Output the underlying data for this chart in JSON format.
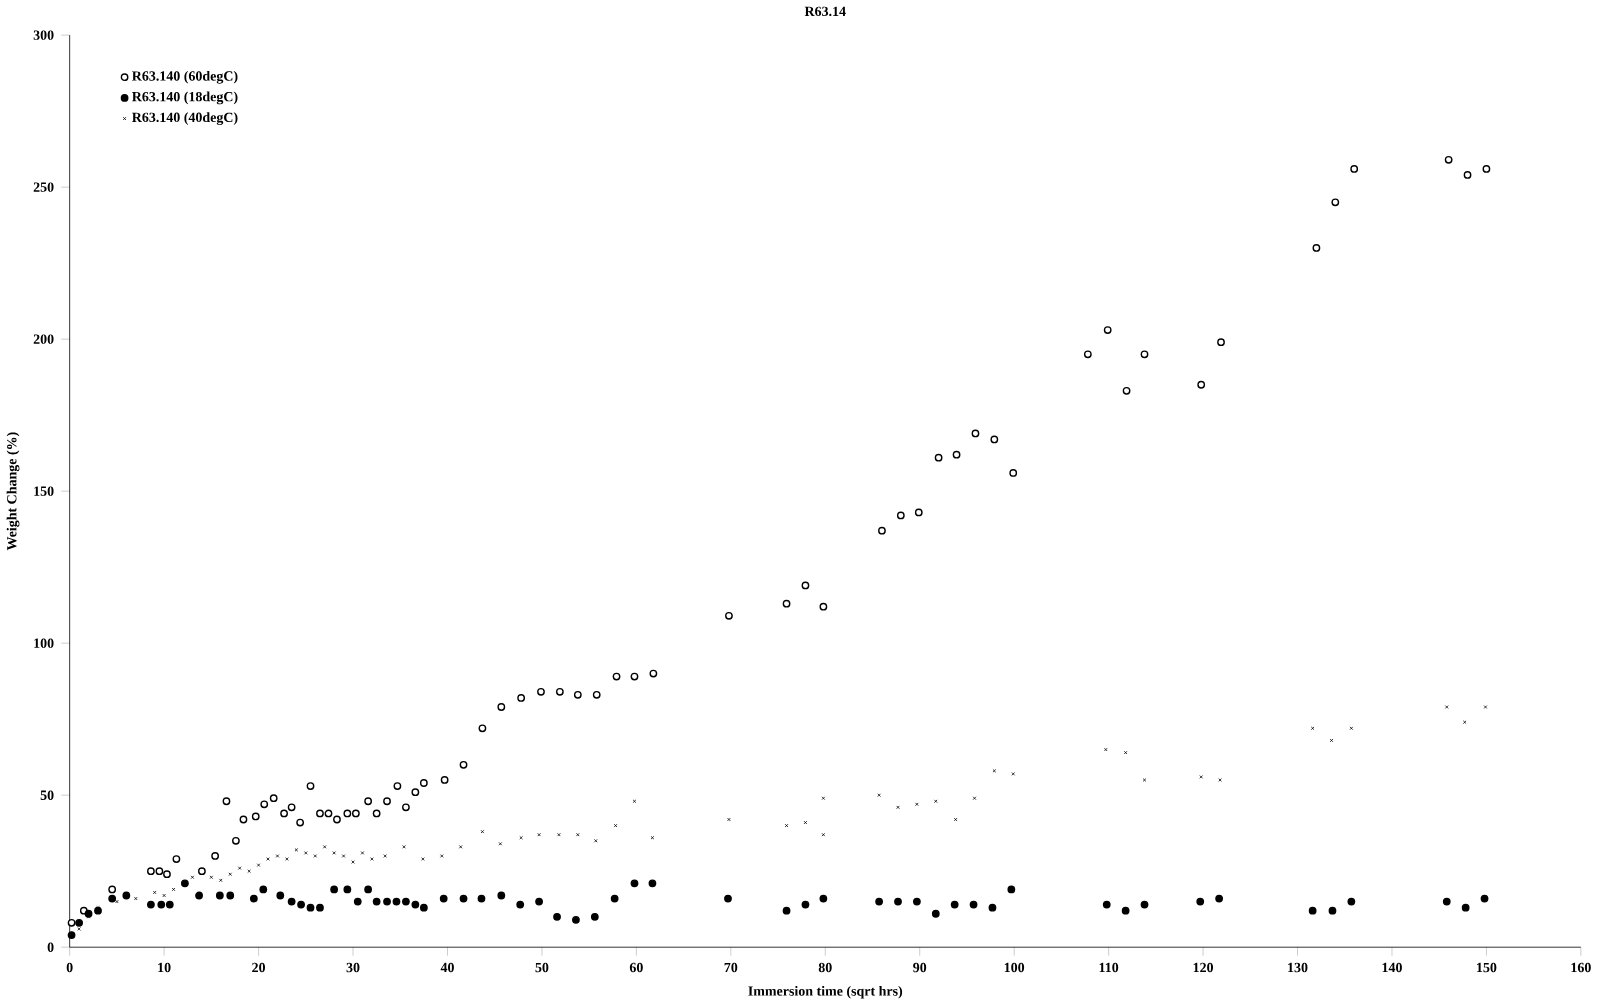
{
  "chart_data": {
    "type": "scatter",
    "title": "R63.14",
    "xlabel": "Immersion time (sqrt hrs)",
    "ylabel": "Weight Change (%)",
    "xlim": [
      0,
      160
    ],
    "xticks": [
      0,
      10,
      20,
      30,
      40,
      50,
      60,
      70,
      80,
      90,
      100,
      110,
      120,
      130,
      140,
      150,
      160
    ],
    "ylim": [
      0,
      300
    ],
    "yticks": [
      0,
      50,
      100,
      150,
      200,
      250,
      300
    ],
    "grid": false,
    "legend": "top left",
    "series": [
      {
        "name": "R63.140 (60degC)",
        "color": "#000000",
        "marker": "circle",
        "x": [
          0.2,
          1.5,
          4.5,
          8.6,
          9.5,
          10.3,
          11.3,
          14,
          15.4,
          16.6,
          17.6,
          18.4,
          19.7,
          20.6,
          21.6,
          22.7,
          23.5,
          24.4,
          25.5,
          26.5,
          27.4,
          28.3,
          29.4,
          30.3,
          31.6,
          32.5,
          33.6,
          34.7,
          35.6,
          36.6,
          37.5,
          39.7,
          41.7,
          43.7,
          45.7,
          47.8,
          49.9,
          51.9,
          53.8,
          55.8,
          57.9,
          59.8,
          61.8,
          69.8,
          75.9,
          77.9,
          79.8,
          86,
          88,
          89.9,
          92,
          93.9,
          95.9,
          97.9,
          99.9,
          107.8,
          109.9,
          111.9,
          113.8,
          119.8,
          121.9,
          132,
          134,
          136,
          146,
          148,
          150
        ],
        "values": [
          8,
          12,
          19,
          25,
          25,
          24,
          29,
          25,
          30,
          48,
          35,
          42,
          43,
          47,
          49,
          44,
          46,
          41,
          53,
          44,
          44,
          42,
          44,
          44,
          48,
          44,
          48,
          53,
          46,
          51,
          54,
          55,
          60,
          72,
          79,
          82,
          84,
          84,
          83,
          83,
          89,
          89,
          90,
          109,
          113,
          119,
          112,
          137,
          142,
          143,
          161,
          162,
          169,
          167,
          156,
          195,
          203,
          183,
          195,
          185,
          199,
          230,
          245,
          256,
          259,
          254,
          256
        ]
      },
      {
        "name": "R63.140 (18degC)",
        "color": "#000000",
        "marker": "circle",
        "x": [
          0.2,
          1,
          2,
          3,
          4.5,
          6,
          8.6,
          9.7,
          10.6,
          12.2,
          13.7,
          15.9,
          17,
          19.5,
          20.5,
          22.3,
          23.5,
          24.5,
          25.5,
          26.5,
          28,
          29.4,
          30.5,
          31.6,
          32.5,
          33.6,
          34.6,
          35.6,
          36.6,
          37.5,
          39.6,
          41.7,
          43.6,
          45.7,
          47.7,
          49.7,
          51.6,
          53.6,
          55.6,
          57.7,
          59.8,
          61.7,
          69.7,
          75.9,
          77.9,
          79.8,
          85.7,
          87.7,
          89.7,
          91.7,
          93.7,
          95.7,
          97.7,
          99.7,
          109.8,
          111.8,
          113.8,
          119.7,
          121.7,
          131.6,
          133.7,
          135.7,
          145.8,
          147.8,
          149.8
        ],
        "values": [
          4,
          8,
          11,
          12,
          16,
          17,
          14,
          14,
          14,
          21,
          17,
          17,
          17,
          16,
          19,
          17,
          15,
          14,
          13,
          13,
          19,
          19,
          15,
          19,
          15,
          15,
          15,
          15,
          14,
          13,
          16,
          16,
          16,
          17,
          14,
          15,
          10,
          9,
          10,
          16,
          21,
          21,
          16,
          12,
          14,
          16,
          15,
          15,
          15,
          11,
          14,
          14,
          13,
          19,
          14,
          12,
          14,
          15,
          16,
          12,
          12,
          15,
          15,
          13,
          16
        ]
      },
      {
        "name": "R63.140 (40degC)",
        "color": "#000000",
        "marker": "cross",
        "x": [
          1,
          2,
          3,
          5,
          7,
          9,
          10,
          11,
          12,
          13,
          15,
          16,
          17,
          18,
          19,
          20,
          21,
          22,
          23,
          24,
          25,
          26,
          27,
          28,
          29,
          30,
          31,
          32,
          33.4,
          35.4,
          37.4,
          39.4,
          41.4,
          43.7,
          45.6,
          47.8,
          49.7,
          51.8,
          53.8,
          55.7,
          57.8,
          59.8,
          61.7,
          69.8,
          75.9,
          77.9,
          79.8,
          79.8,
          85.7,
          87.7,
          89.7,
          91.7,
          93.8,
          95.8,
          97.9,
          99.9,
          109.7,
          111.8,
          113.8,
          119.8,
          121.8,
          131.6,
          133.6,
          135.7,
          145.8,
          147.7,
          149.9
        ],
        "values": [
          6,
          10,
          13,
          15,
          16,
          18,
          17,
          19,
          21,
          23,
          23,
          22,
          24,
          26,
          25,
          27,
          29,
          30,
          29,
          32,
          31,
          30,
          33,
          31,
          30,
          28,
          31,
          29,
          30,
          33,
          29,
          30,
          33,
          38,
          34,
          36,
          37,
          37,
          37,
          35,
          40,
          48,
          36,
          42,
          40,
          41,
          49,
          37,
          50,
          46,
          47,
          48,
          42,
          49,
          58,
          57,
          65,
          64,
          55,
          56,
          55,
          72,
          68,
          72,
          79,
          74,
          79
        ]
      }
    ]
  }
}
